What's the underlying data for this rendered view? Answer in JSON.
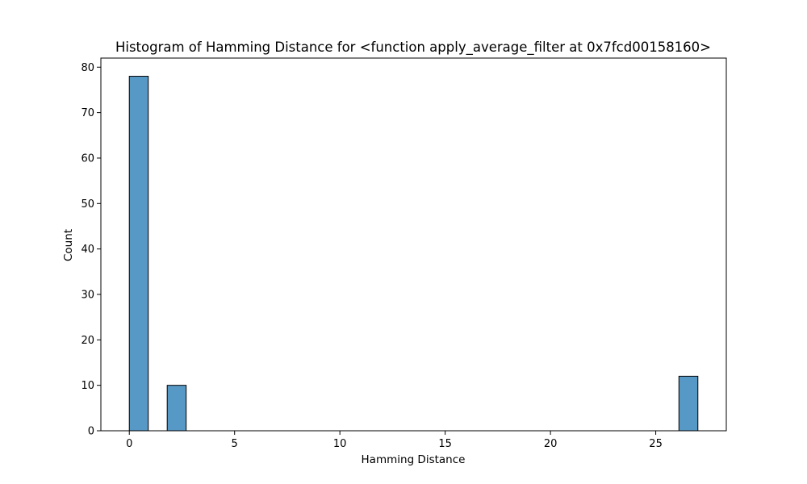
{
  "chart_data": {
    "type": "bar",
    "title": "Histogram of Hamming Distance for <function apply_average_filter at 0x7fcd00158160>",
    "xlabel": "Hamming Distance",
    "ylabel": "Count",
    "xlim": [
      -1.35,
      28.35
    ],
    "ylim": [
      0,
      82
    ],
    "xticks": [
      0,
      5,
      10,
      15,
      20,
      25
    ],
    "yticks": [
      0,
      10,
      20,
      30,
      40,
      50,
      60,
      70,
      80
    ],
    "grid": false,
    "bar_color": "#5799c6",
    "bars": [
      {
        "x0": 0,
        "x1": 0.9,
        "value": 78
      },
      {
        "x0": 1.8,
        "x1": 2.7,
        "value": 10
      },
      {
        "x0": 26.1,
        "x1": 27.0,
        "value": 12
      }
    ]
  }
}
